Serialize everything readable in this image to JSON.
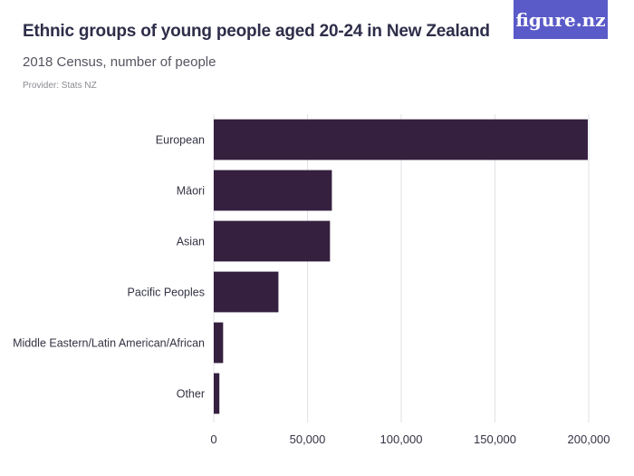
{
  "header": {
    "title": "Ethnic groups of young people aged 20-24 in New Zealand",
    "subtitle": "2018 Census, number of people",
    "provider": "Provider: Stats NZ",
    "logo": "figure.nz"
  },
  "colors": {
    "bar": "#35203f",
    "grid": "#e2e2e6",
    "axis_text": "#333344"
  },
  "chart_data": {
    "type": "bar",
    "orientation": "horizontal",
    "categories": [
      "European",
      "Māori",
      "Asian",
      "Pacific Peoples",
      "Middle Eastern/Latin American/African",
      "Other"
    ],
    "values": [
      199500,
      63000,
      62000,
      34500,
      5000,
      3000
    ],
    "xlim": [
      0,
      200000
    ],
    "xticks": [
      0,
      50000,
      100000,
      150000,
      200000
    ],
    "xtick_labels": [
      "0",
      "50,000",
      "100,000",
      "150,000",
      "200,000"
    ],
    "grid": true,
    "legend": "none"
  }
}
